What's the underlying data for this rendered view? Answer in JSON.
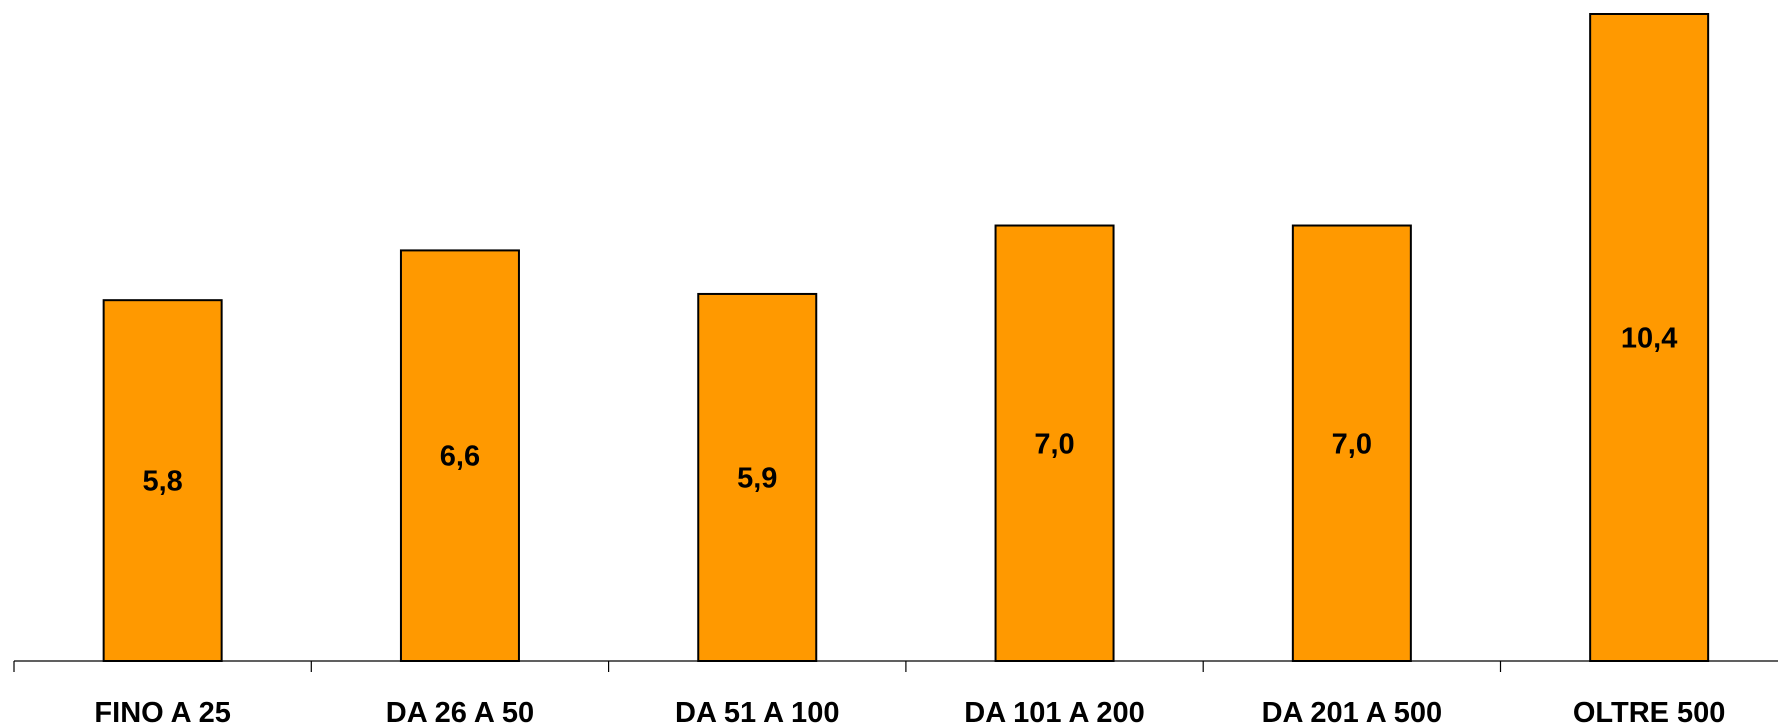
{
  "chart_data": {
    "type": "bar",
    "categories": [
      "FINO A 25",
      "DA 26 A 50",
      "DA 51 A 100",
      "DA 101 A 200",
      "DA 201 A 500",
      "OLTRE 500"
    ],
    "values": [
      5.8,
      6.6,
      5.9,
      7.0,
      7.0,
      10.4
    ],
    "value_labels": [
      "5,8",
      "6,6",
      "5,9",
      "7,0",
      "7,0",
      "10,4"
    ],
    "ylim": [
      0,
      10.4
    ],
    "bar_color": "#ff9900",
    "grid": false,
    "legend": "none"
  }
}
